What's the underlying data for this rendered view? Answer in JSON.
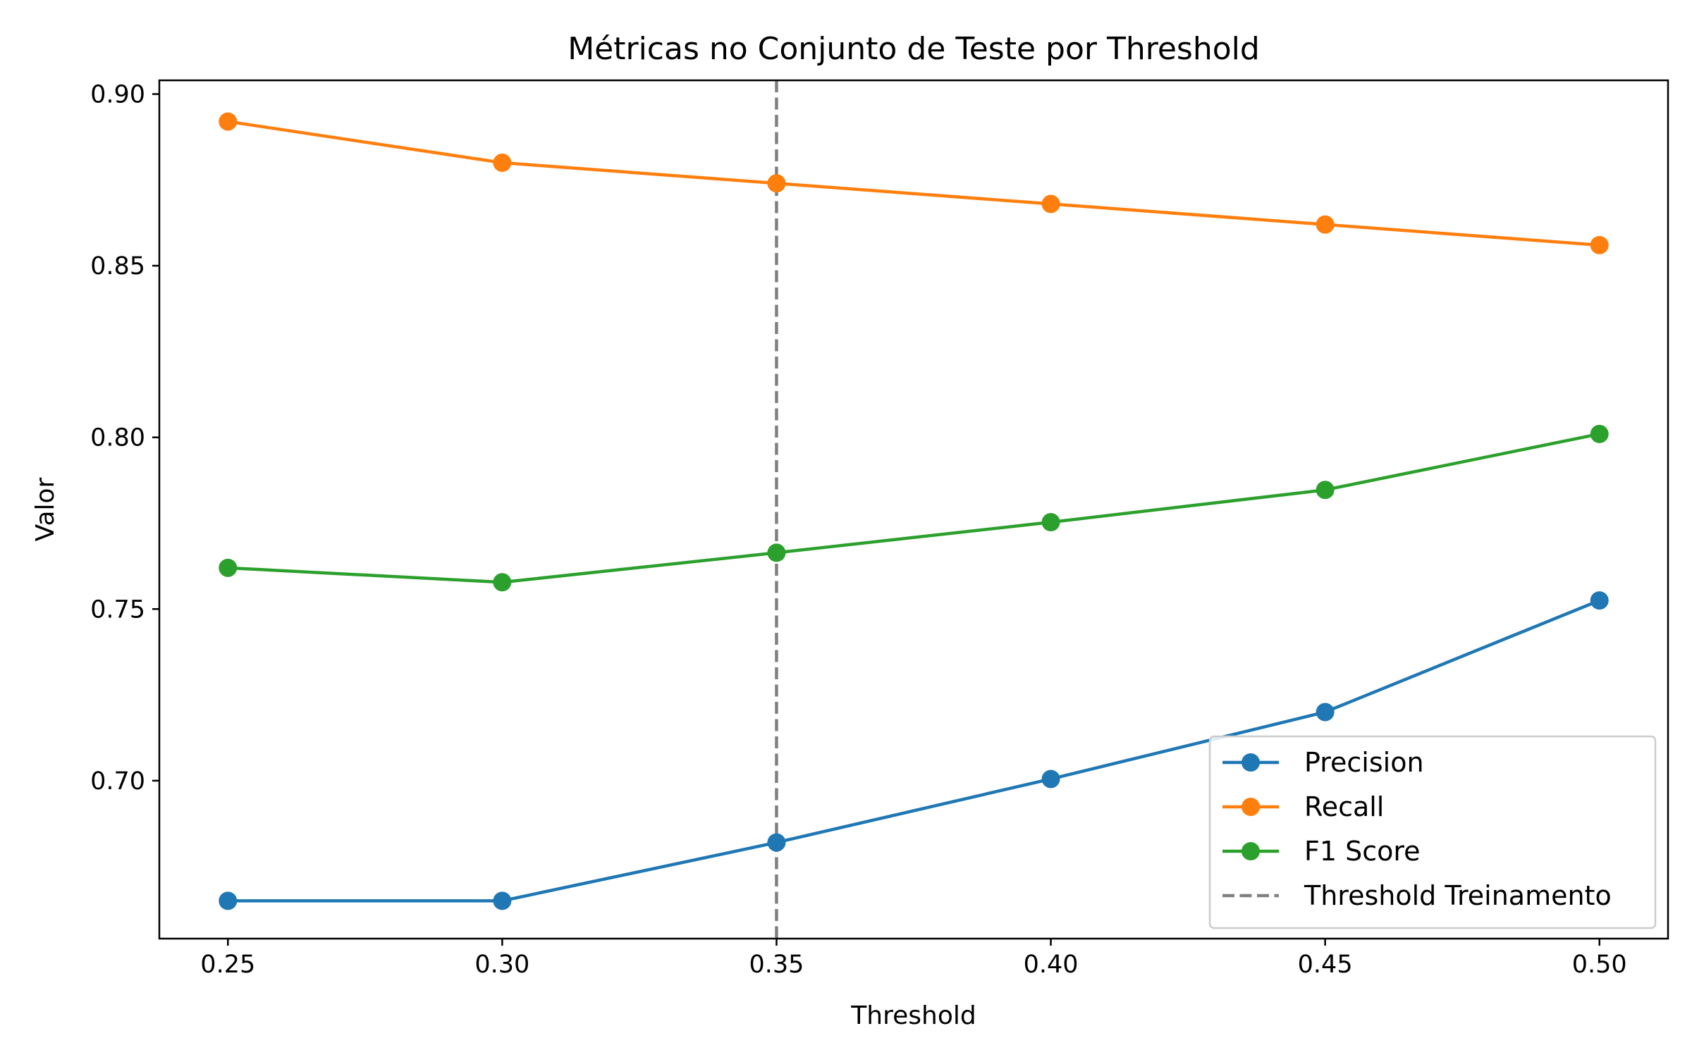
{
  "chart_data": {
    "type": "line",
    "title": "Métricas no Conjunto de Teste por Threshold",
    "xlabel": "Threshold",
    "ylabel": "Valor",
    "x": [
      0.25,
      0.3,
      0.35,
      0.4,
      0.45,
      0.5
    ],
    "x_tick_labels": [
      "0.25",
      "0.30",
      "0.35",
      "0.40",
      "0.45",
      "0.50"
    ],
    "y_ticks": [
      0.7,
      0.75,
      0.8,
      0.85,
      0.9
    ],
    "y_tick_labels": [
      "0.70",
      "0.75",
      "0.80",
      "0.85",
      "0.90"
    ],
    "xlim": [
      0.2375,
      0.5125
    ],
    "ylim": [
      0.654,
      0.904
    ],
    "grid": false,
    "legend_position": "lower-right",
    "series": [
      {
        "name": "Precision",
        "color": "#1f77b4",
        "marker": "circle",
        "values": [
          0.665,
          0.665,
          0.682,
          0.7005,
          0.72,
          0.7525
        ]
      },
      {
        "name": "Recall",
        "color": "#ff7f0e",
        "marker": "circle",
        "values": [
          0.892,
          0.88,
          0.874,
          0.868,
          0.862,
          0.856
        ]
      },
      {
        "name": "F1 Score",
        "color": "#2ca02c",
        "marker": "circle",
        "values": [
          0.762,
          0.7578,
          0.7664,
          0.7753,
          0.7847,
          0.801
        ]
      }
    ],
    "reference_lines": [
      {
        "name": "Threshold Treinamento",
        "orientation": "vertical",
        "x": 0.35,
        "color": "#808080",
        "style": "dashed"
      }
    ]
  }
}
